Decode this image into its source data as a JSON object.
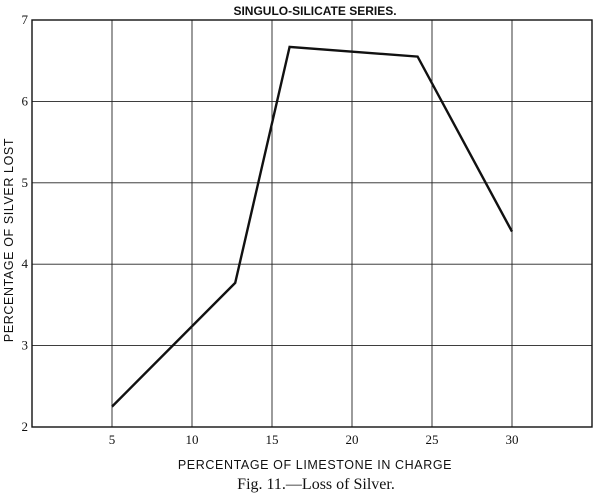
{
  "chart_data": {
    "type": "line",
    "title": "SINGULO-SILICATE SERIES.",
    "xlabel": "PERCENTAGE OF LIMESTONE IN CHARGE",
    "ylabel": "PERCENTAGE OF SILVER LOST",
    "caption": "Fig. 11.—Loss of Silver.",
    "xlim": [
      0,
      35
    ],
    "ylim": [
      2,
      7
    ],
    "xticks": [
      5,
      10,
      15,
      20,
      25,
      30
    ],
    "yticks": [
      2,
      3,
      4,
      5,
      6,
      7
    ],
    "grid": true,
    "series": [
      {
        "x": [
          5,
          12.7,
          16.1,
          24.1,
          30
        ],
        "y": [
          2.25,
          3.77,
          6.67,
          6.55,
          4.4
        ]
      }
    ]
  }
}
